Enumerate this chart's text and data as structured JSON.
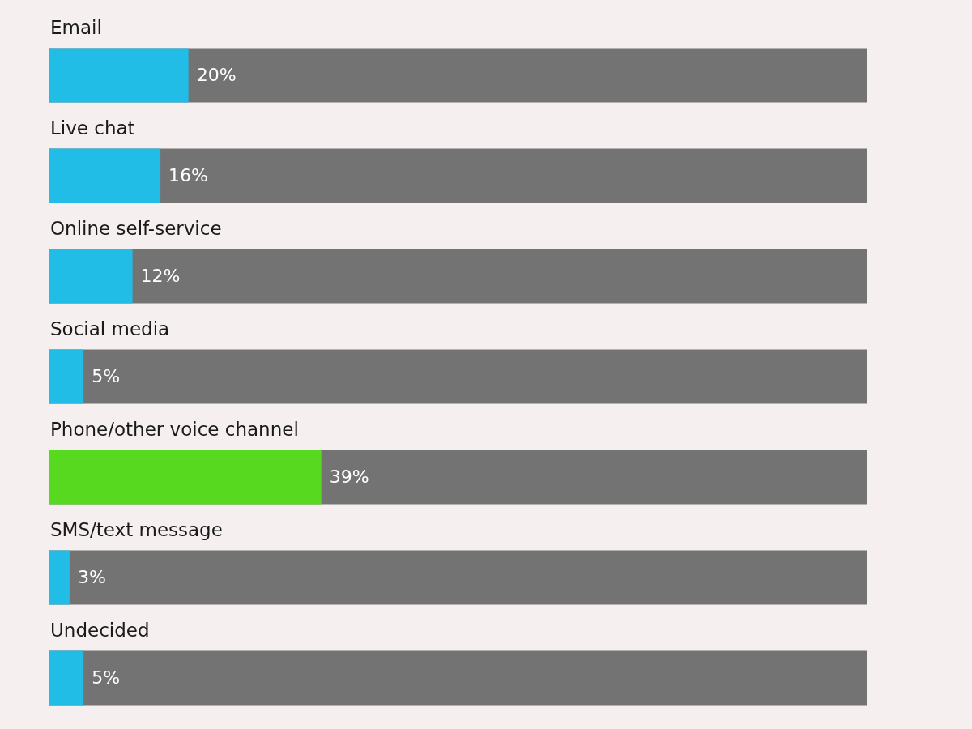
{
  "chart_data": {
    "type": "bar",
    "orientation": "horizontal",
    "categories": [
      "Email",
      "Live chat",
      "Online self-service",
      "Social media",
      "Phone/other voice channel",
      "SMS/text message",
      "Undecided"
    ],
    "series": [
      {
        "colors": [
          "#22bde6",
          "#22bde6",
          "#22bde6",
          "#22bde6",
          "#57d920",
          "#22bde6",
          "#22bde6"
        ],
        "values": [
          20,
          16,
          12,
          5,
          39,
          3,
          5
        ],
        "value_labels": [
          "20%",
          "16%",
          "12%",
          "5%",
          "39%",
          "3%",
          "5%"
        ]
      }
    ]
  }
}
